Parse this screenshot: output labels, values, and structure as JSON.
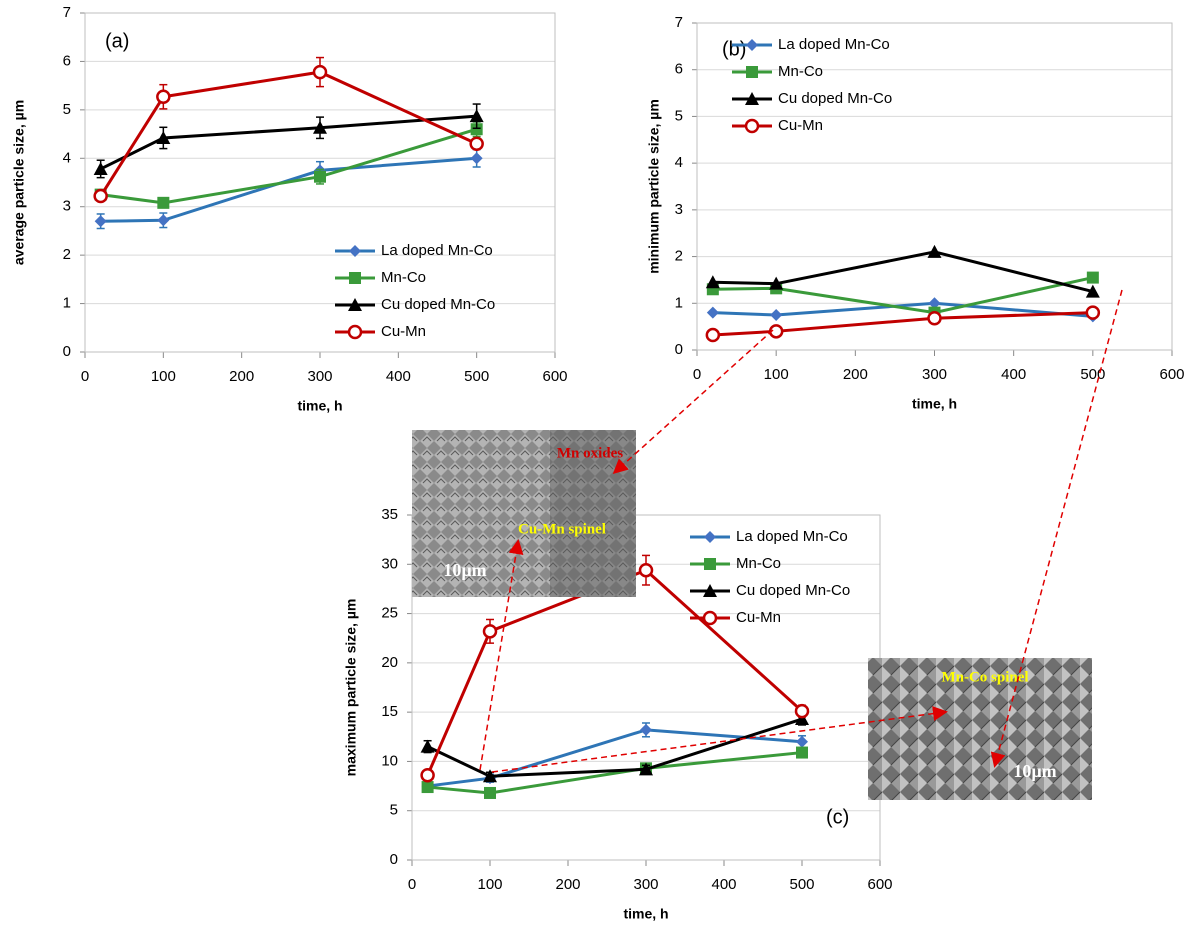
{
  "chart_data": [
    {
      "type": "line",
      "panel_label": "(a)",
      "x_label": "time, h",
      "y_label": "average particle size, µm",
      "x": [
        20,
        100,
        300,
        500
      ],
      "xlim": [
        0,
        600
      ],
      "xticks": [
        0,
        100,
        200,
        300,
        400,
        500,
        600
      ],
      "ylim": [
        0,
        7
      ],
      "yticks": [
        0,
        1,
        2,
        3,
        4,
        5,
        6,
        7
      ],
      "grid": true,
      "legend": "lower right",
      "series": [
        {
          "name": "La doped Mn-Co",
          "color": "#2e75b6",
          "marker": "diamond",
          "values": [
            2.7,
            2.72,
            3.75,
            4.0
          ],
          "errors": [
            0.15,
            0.15,
            0.18,
            0.18
          ]
        },
        {
          "name": "Mn-Co",
          "color": "#3a9a3a",
          "marker": "square",
          "values": [
            3.25,
            3.08,
            3.62,
            4.6
          ],
          "errors": [
            0.1,
            0.1,
            0.15,
            0.15
          ]
        },
        {
          "name": "Cu doped Mn-Co",
          "color": "#000000",
          "marker": "triangle",
          "values": [
            3.78,
            4.42,
            4.63,
            4.87
          ],
          "errors": [
            0.18,
            0.22,
            0.22,
            0.25
          ]
        },
        {
          "name": "Cu-Mn",
          "color": "#c00000",
          "marker": "circle",
          "values": [
            3.22,
            5.27,
            5.78,
            4.3
          ],
          "errors": [
            0.1,
            0.25,
            0.3,
            0.1
          ]
        }
      ]
    },
    {
      "type": "line",
      "panel_label": "(b)",
      "x_label": "time, h",
      "y_label": "minimum particle size, µm",
      "x": [
        20,
        100,
        300,
        500
      ],
      "xlim": [
        0,
        600
      ],
      "xticks": [
        0,
        100,
        200,
        300,
        400,
        500,
        600
      ],
      "ylim": [
        0,
        7
      ],
      "yticks": [
        0,
        1,
        2,
        3,
        4,
        5,
        6,
        7
      ],
      "grid": true,
      "legend": "upper left",
      "series": [
        {
          "name": "La doped Mn-Co",
          "color": "#2e75b6",
          "marker": "diamond",
          "values": [
            0.8,
            0.75,
            1.0,
            0.72
          ]
        },
        {
          "name": "Mn-Co",
          "color": "#3a9a3a",
          "marker": "square",
          "values": [
            1.3,
            1.32,
            0.8,
            1.55
          ]
        },
        {
          "name": "Cu doped Mn-Co",
          "color": "#000000",
          "marker": "triangle",
          "values": [
            1.45,
            1.42,
            2.1,
            1.25
          ]
        },
        {
          "name": "Cu-Mn",
          "color": "#c00000",
          "marker": "circle",
          "values": [
            0.32,
            0.4,
            0.68,
            0.8
          ]
        }
      ]
    },
    {
      "type": "line",
      "panel_label": "(c)",
      "x_label": "time, h",
      "y_label": "maximum particle size, µm",
      "x": [
        20,
        100,
        300,
        500
      ],
      "xlim": [
        0,
        600
      ],
      "xticks": [
        0,
        100,
        200,
        300,
        400,
        500,
        600
      ],
      "ylim": [
        0,
        35
      ],
      "yticks": [
        0,
        5,
        10,
        15,
        20,
        25,
        30,
        35
      ],
      "grid": true,
      "legend": "upper right",
      "series": [
        {
          "name": "La doped Mn-Co",
          "color": "#2e75b6",
          "marker": "diamond",
          "values": [
            7.5,
            8.3,
            13.2,
            12.0
          ],
          "errors": [
            0.3,
            0.4,
            0.7,
            0.6
          ]
        },
        {
          "name": "Mn-Co",
          "color": "#3a9a3a",
          "marker": "square",
          "values": [
            7.4,
            6.8,
            9.3,
            10.9
          ],
          "errors": [
            0.3,
            0.3,
            0.4,
            0.4
          ]
        },
        {
          "name": "Cu doped Mn-Co",
          "color": "#000000",
          "marker": "triangle",
          "values": [
            11.5,
            8.5,
            9.2,
            14.3
          ],
          "errors": [
            0.6,
            0.4,
            0.4,
            0.6
          ]
        },
        {
          "name": "Cu-Mn",
          "color": "#c00000",
          "marker": "circle",
          "values": [
            8.6,
            23.2,
            29.4,
            15.1
          ],
          "errors": [
            0.4,
            1.2,
            1.5,
            0.6
          ]
        }
      ]
    }
  ],
  "insets": [
    {
      "labels": [
        "Mn oxides",
        "Cu-Mn spinel",
        "10µm"
      ]
    },
    {
      "labels": [
        "Mn-Co spinel",
        "10µm"
      ]
    }
  ]
}
